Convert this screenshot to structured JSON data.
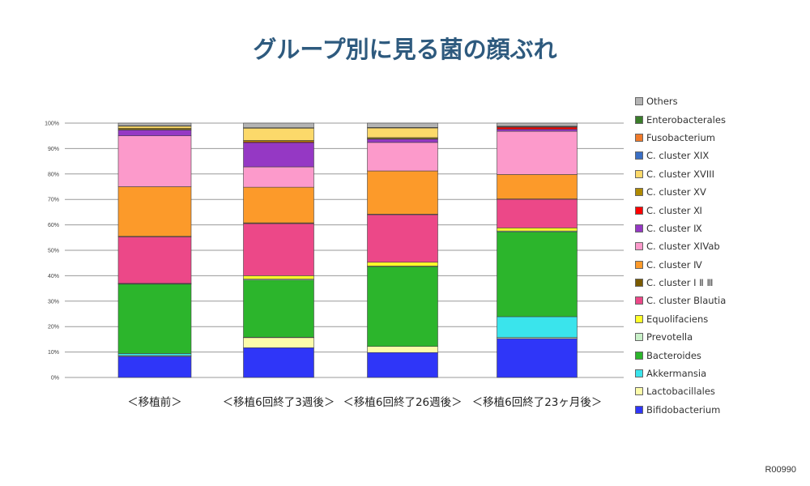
{
  "title": "グループ別に見る菌の顔ぶれ",
  "code": "R00990",
  "chart_data": {
    "type": "bar",
    "stacked": true,
    "title": "グループ別に見る菌の顔ぶれ",
    "xlabel": "",
    "ylabel": "",
    "ylim": [
      0,
      100
    ],
    "yticks": [
      "0%",
      "10%",
      "20%",
      "30%",
      "40%",
      "50%",
      "60%",
      "70%",
      "80%",
      "90%",
      "100%"
    ],
    "grid": true,
    "legend_position": "right",
    "categories": [
      "＜移植前＞",
      "＜移植6回終了3週後＞",
      "＜移植6回終了26週後＞",
      "＜移植6回終了23ヶ月後＞"
    ],
    "series": [
      {
        "name": "Bifidobacterium",
        "color": "#2f36f8",
        "values": [
          8.3,
          11.7,
          9.8,
          15.3
        ]
      },
      {
        "name": "Lactobacillales",
        "color": "#fcfcaa",
        "values": [
          0.3,
          4.0,
          2.4,
          0.4
        ]
      },
      {
        "name": "Akkermansia",
        "color": "#3ae4ec",
        "values": [
          0.8,
          0.1,
          0.0,
          8.2
        ]
      },
      {
        "name": "Bacteroides",
        "color": "#2cb52c",
        "values": [
          27.3,
          22.5,
          31.4,
          33.4
        ]
      },
      {
        "name": "Prevotella",
        "color": "#c8f0c8",
        "values": [
          0.2,
          0.4,
          0.2,
          0.3
        ]
      },
      {
        "name": "Equolifaciens",
        "color": "#ffff2a",
        "values": [
          0.1,
          1.3,
          1.5,
          1.2
        ]
      },
      {
        "name": "C. cluster Blautia",
        "color": "#ec4888",
        "values": [
          18.3,
          20.5,
          18.7,
          11.3
        ]
      },
      {
        "name": "C. cluster Ⅰ Ⅱ Ⅲ",
        "color": "#7a5a00",
        "values": [
          0.2,
          0.3,
          0.2,
          0.1
        ]
      },
      {
        "name": "C. cluster Ⅳ",
        "color": "#fc9a2a",
        "values": [
          19.5,
          14.0,
          17.0,
          9.6
        ]
      },
      {
        "name": "C. cluster XIVab",
        "color": "#fc9acb",
        "values": [
          20.0,
          8.0,
          11.2,
          17.0
        ]
      },
      {
        "name": "C. cluster Ⅸ",
        "color": "#9538c4",
        "values": [
          2.3,
          9.5,
          1.3,
          0.8
        ]
      },
      {
        "name": "C. cluster Ⅺ",
        "color": "#ff0000",
        "values": [
          0.2,
          0.3,
          0.2,
          0.8
        ]
      },
      {
        "name": "C. cluster XV",
        "color": "#b08a00",
        "values": [
          0.5,
          0.6,
          0.4,
          0.2
        ]
      },
      {
        "name": "C. cluster XVIII",
        "color": "#fcd96a",
        "values": [
          0.8,
          4.8,
          3.8,
          0.0
        ]
      },
      {
        "name": "C. cluster XIX",
        "color": "#3a6fc4",
        "values": [
          0.0,
          0.0,
          0.0,
          0.0
        ]
      },
      {
        "name": "Fusobacterium",
        "color": "#f07a2a",
        "values": [
          0.0,
          0.0,
          0.0,
          0.0
        ]
      },
      {
        "name": "Enterobacterales",
        "color": "#3a7d2a",
        "values": [
          0.2,
          0.2,
          0.2,
          0.2
        ]
      },
      {
        "name": "Others",
        "color": "#b4b4b4",
        "values": [
          1.0,
          1.8,
          1.7,
          1.2
        ]
      }
    ]
  }
}
